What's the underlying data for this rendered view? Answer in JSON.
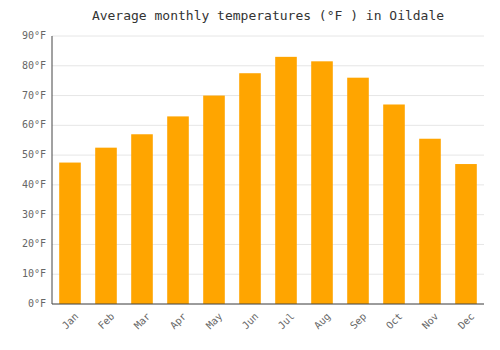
{
  "chart_data": {
    "type": "bar",
    "title": "Average monthly temperatures (°F ) in Oildale",
    "categories": [
      "Jan",
      "Feb",
      "Mar",
      "Apr",
      "May",
      "Jun",
      "Jul",
      "Aug",
      "Sep",
      "Oct",
      "Nov",
      "Dec"
    ],
    "values": [
      47.5,
      52.5,
      57.0,
      63.0,
      70.0,
      77.5,
      83.0,
      81.5,
      76.0,
      67.0,
      55.5,
      47.0
    ],
    "color": "#FFA500",
    "ylim": [
      0,
      90
    ],
    "yticks": [
      {
        "value": 0,
        "label": "0°F"
      },
      {
        "value": 10,
        "label": "10°F"
      },
      {
        "value": 20,
        "label": "20°F"
      },
      {
        "value": 30,
        "label": "30°F"
      },
      {
        "value": 40,
        "label": "40°F"
      },
      {
        "value": 50,
        "label": "50°F"
      },
      {
        "value": 60,
        "label": "60°F"
      },
      {
        "value": 70,
        "label": "70°F"
      },
      {
        "value": 80,
        "label": "80°F"
      },
      {
        "value": 90,
        "label": "90°F"
      }
    ],
    "grid": true
  }
}
